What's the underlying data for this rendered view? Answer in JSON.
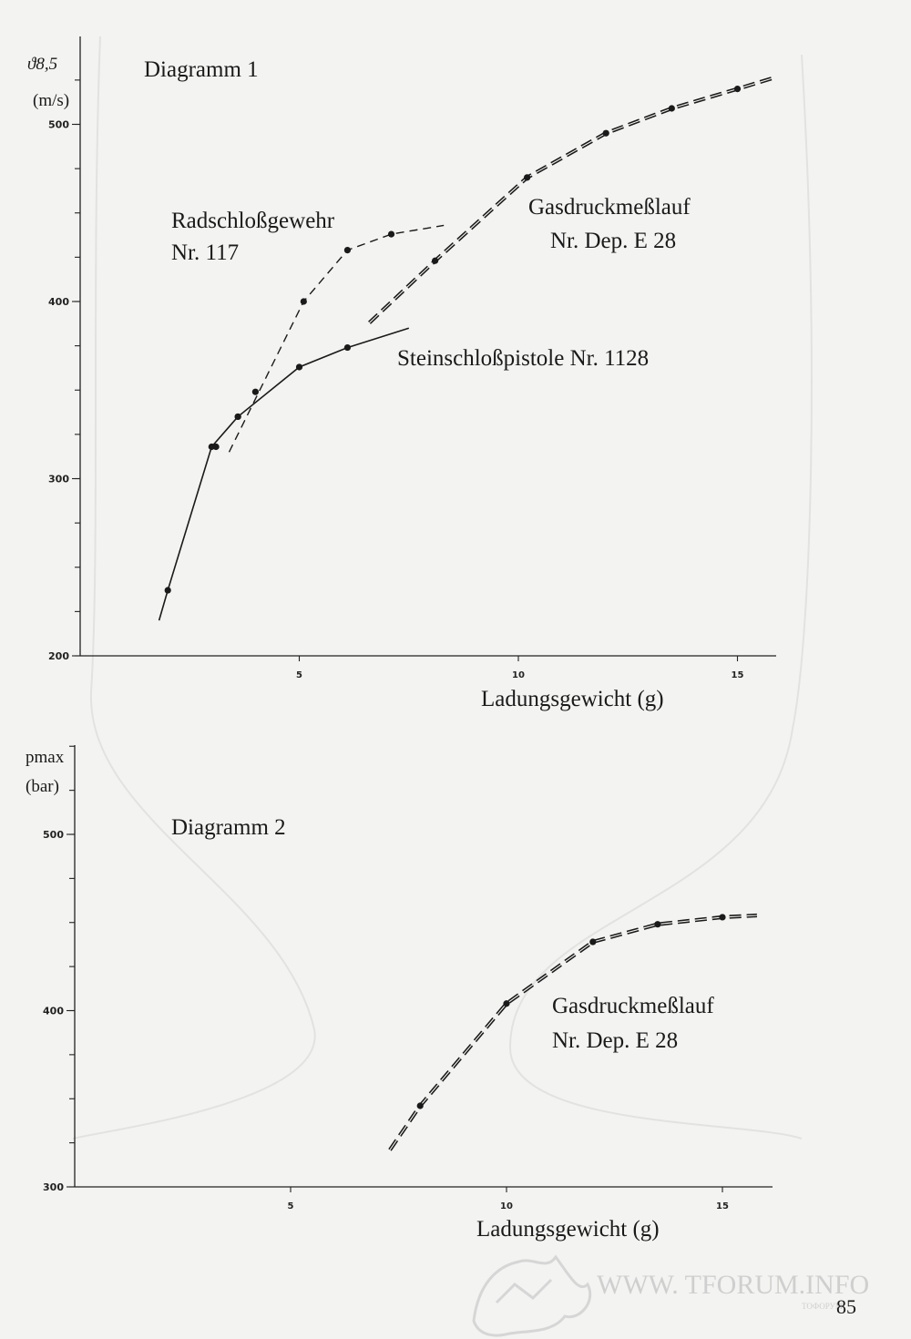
{
  "page_number": "85",
  "watermark": {
    "text": "WWW. TFORUM.INFO",
    "subtext": "ТОФОРУМ"
  },
  "chart_data": [
    {
      "type": "line",
      "title": "Diagramm 1",
      "ylabel": "ϑ8,5",
      "yunit": "(m/s)",
      "xlabel": "Ladungsgewicht (g)",
      "xlim": [
        0,
        16
      ],
      "ylim": [
        200,
        540
      ],
      "xticks": [
        5,
        10,
        15
      ],
      "yticks": [
        200,
        300,
        400,
        500
      ],
      "grid": false,
      "series": [
        {
          "name": "Radschloßgewehr",
          "label_line2": "Nr. 117",
          "style": "dashed-thin",
          "x": [
            3.1,
            3.6,
            4.0,
            5.1,
            6.1,
            7.1
          ],
          "y": [
            318,
            335,
            349,
            400,
            429,
            438
          ],
          "line_x": [
            3.4,
            5.1,
            6.1,
            7.1,
            8.3
          ],
          "line_y": [
            315,
            400,
            429,
            438,
            443
          ]
        },
        {
          "name": "Steinschloßpistole Nr. 1128",
          "style": "solid",
          "x": [
            2.0,
            3.0,
            3.6,
            5.0,
            6.1
          ],
          "y": [
            237,
            318,
            335,
            363,
            374
          ],
          "line_x": [
            1.8,
            2.0,
            3.0,
            3.6,
            5.0,
            6.1,
            7.5
          ],
          "line_y": [
            220,
            237,
            318,
            335,
            363,
            374,
            385
          ]
        },
        {
          "name": "Gasdruckmeßlauf",
          "label_line2": "Nr. Dep. E 28",
          "style": "dashed-double",
          "x": [
            8.1,
            10.2,
            12.0,
            13.5,
            15.0
          ],
          "y": [
            423,
            470,
            495,
            509,
            520
          ],
          "line_x": [
            6.6,
            8.1,
            10.2,
            12.0,
            13.5,
            15.0,
            15.8
          ],
          "line_y": [
            388,
            423,
            470,
            495,
            509,
            520,
            526
          ]
        }
      ]
    },
    {
      "type": "line",
      "title": "Diagramm 2",
      "ylabel": "pmax",
      "yunit": "(bar)",
      "xlabel": "Ladungsgewicht (g)",
      "xlim": [
        0,
        16
      ],
      "ylim": [
        300,
        560
      ],
      "xticks": [
        5,
        10,
        15
      ],
      "yticks": [
        300,
        400,
        500
      ],
      "grid": false,
      "series": [
        {
          "name": "Gasdruckmeßlauf",
          "label_line2": "Nr. Dep. E 28",
          "style": "dashed-double",
          "x": [
            8.0,
            10.0,
            12.0,
            13.5,
            15.0
          ],
          "y": [
            346,
            404,
            439,
            449,
            453
          ],
          "line_x": [
            7.3,
            8.0,
            10.0,
            12.0,
            13.5,
            15.0,
            15.8
          ],
          "line_y": [
            321,
            346,
            404,
            439,
            449,
            453,
            454
          ]
        }
      ]
    }
  ]
}
